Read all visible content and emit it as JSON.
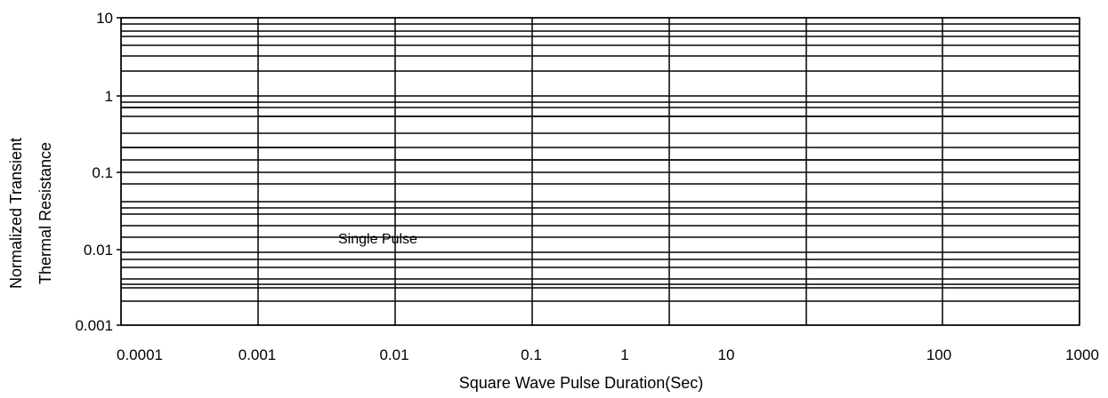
{
  "chart_data": {
    "type": "line",
    "title": "",
    "xlabel": "Square Wave Pulse Duration(Sec)",
    "ylabel_lines": [
      "Normalized Transient",
      "Thermal Resistance"
    ],
    "x_tick_labels": [
      "0.0001",
      "0.001",
      "0.01",
      "0.1",
      "1",
      "10",
      "100",
      "1000"
    ],
    "y_tick_labels": [
      "10",
      "1",
      "0.1",
      "0.01",
      "0.001"
    ],
    "xlim": [
      0.0001,
      1000
    ],
    "ylim": [
      0.001,
      10
    ],
    "x_scale": "log",
    "y_scale": "log",
    "grid": true,
    "series": [],
    "annotations": [
      {
        "text": "Single Pulse",
        "x": 0.0035,
        "y": 0.015
      }
    ]
  }
}
